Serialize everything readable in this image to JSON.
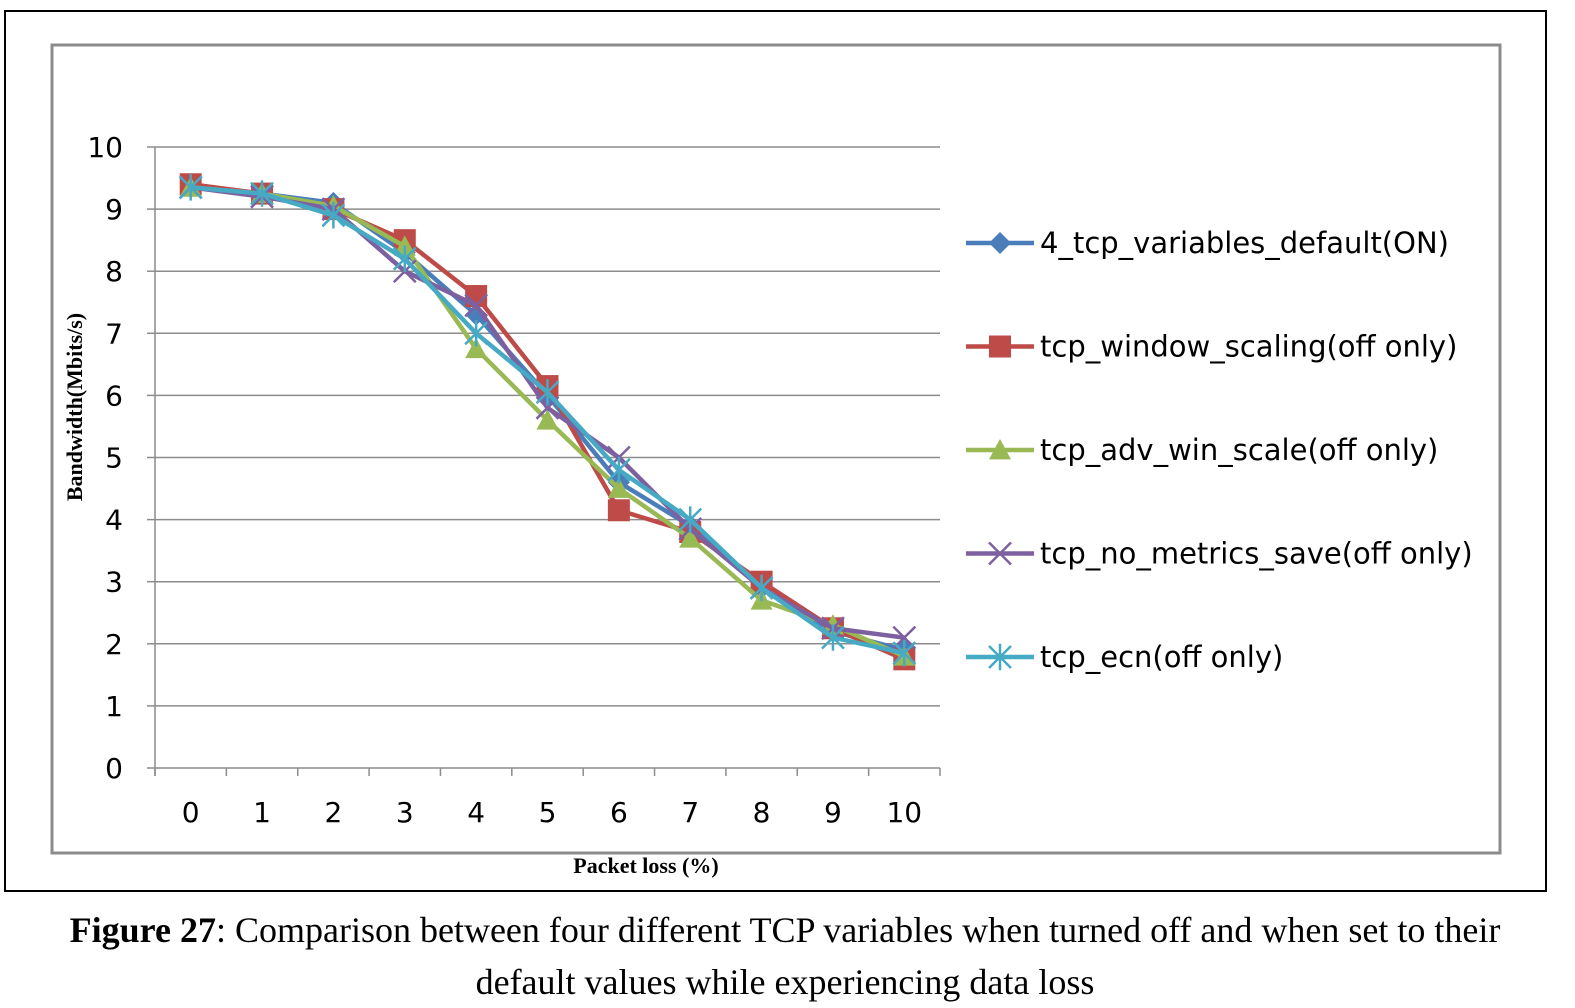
{
  "chart_data": {
    "type": "line",
    "title": "",
    "xlabel": "Packet loss (%)",
    "ylabel": "Bandwidth(Mbits/s)",
    "ylim": [
      0,
      10
    ],
    "yticks": [
      "0",
      "1",
      "2",
      "3",
      "4",
      "5",
      "6",
      "7",
      "8",
      "9",
      "10"
    ],
    "categories": [
      "0",
      "1",
      "2",
      "3",
      "4",
      "5",
      "6",
      "7",
      "8",
      "9",
      "10"
    ],
    "grid": true,
    "legend_position": "right",
    "series": [
      {
        "name": "4_tcp_variables_default(ON)",
        "color": "#4a7ebb",
        "marker": "diamond",
        "values": [
          9.35,
          9.25,
          9.1,
          8.3,
          7.3,
          6.0,
          4.6,
          3.9,
          2.9,
          2.2,
          1.9
        ]
      },
      {
        "name": "tcp_window_scaling(off only)",
        "color": "#be4b48",
        "marker": "square",
        "values": [
          9.4,
          9.25,
          9.0,
          8.5,
          7.6,
          6.15,
          4.15,
          3.8,
          3.0,
          2.25,
          1.75
        ]
      },
      {
        "name": "tcp_adv_win_scale(off only)",
        "color": "#98b954",
        "marker": "triangle",
        "values": [
          9.35,
          9.25,
          9.05,
          8.4,
          6.75,
          5.6,
          4.5,
          3.7,
          2.7,
          2.3,
          1.8
        ]
      },
      {
        "name": "tcp_no_metrics_save(off only)",
        "color": "#7d60a0",
        "marker": "x",
        "values": [
          9.35,
          9.2,
          9.0,
          8.0,
          7.45,
          5.8,
          5.0,
          3.85,
          2.9,
          2.25,
          2.1
        ]
      },
      {
        "name": "tcp_ecn(off only)",
        "color": "#46aac5",
        "marker": "star",
        "values": [
          9.35,
          9.25,
          8.9,
          8.2,
          7.0,
          6.05,
          4.8,
          4.0,
          2.9,
          2.1,
          1.85
        ]
      }
    ]
  },
  "caption": {
    "label": "Figure 27",
    "text": ":  Comparison  between  four  different   TCP  variables   when  turned   off  and  when  set  to  their   default   values   while   experiencing   data  loss"
  }
}
